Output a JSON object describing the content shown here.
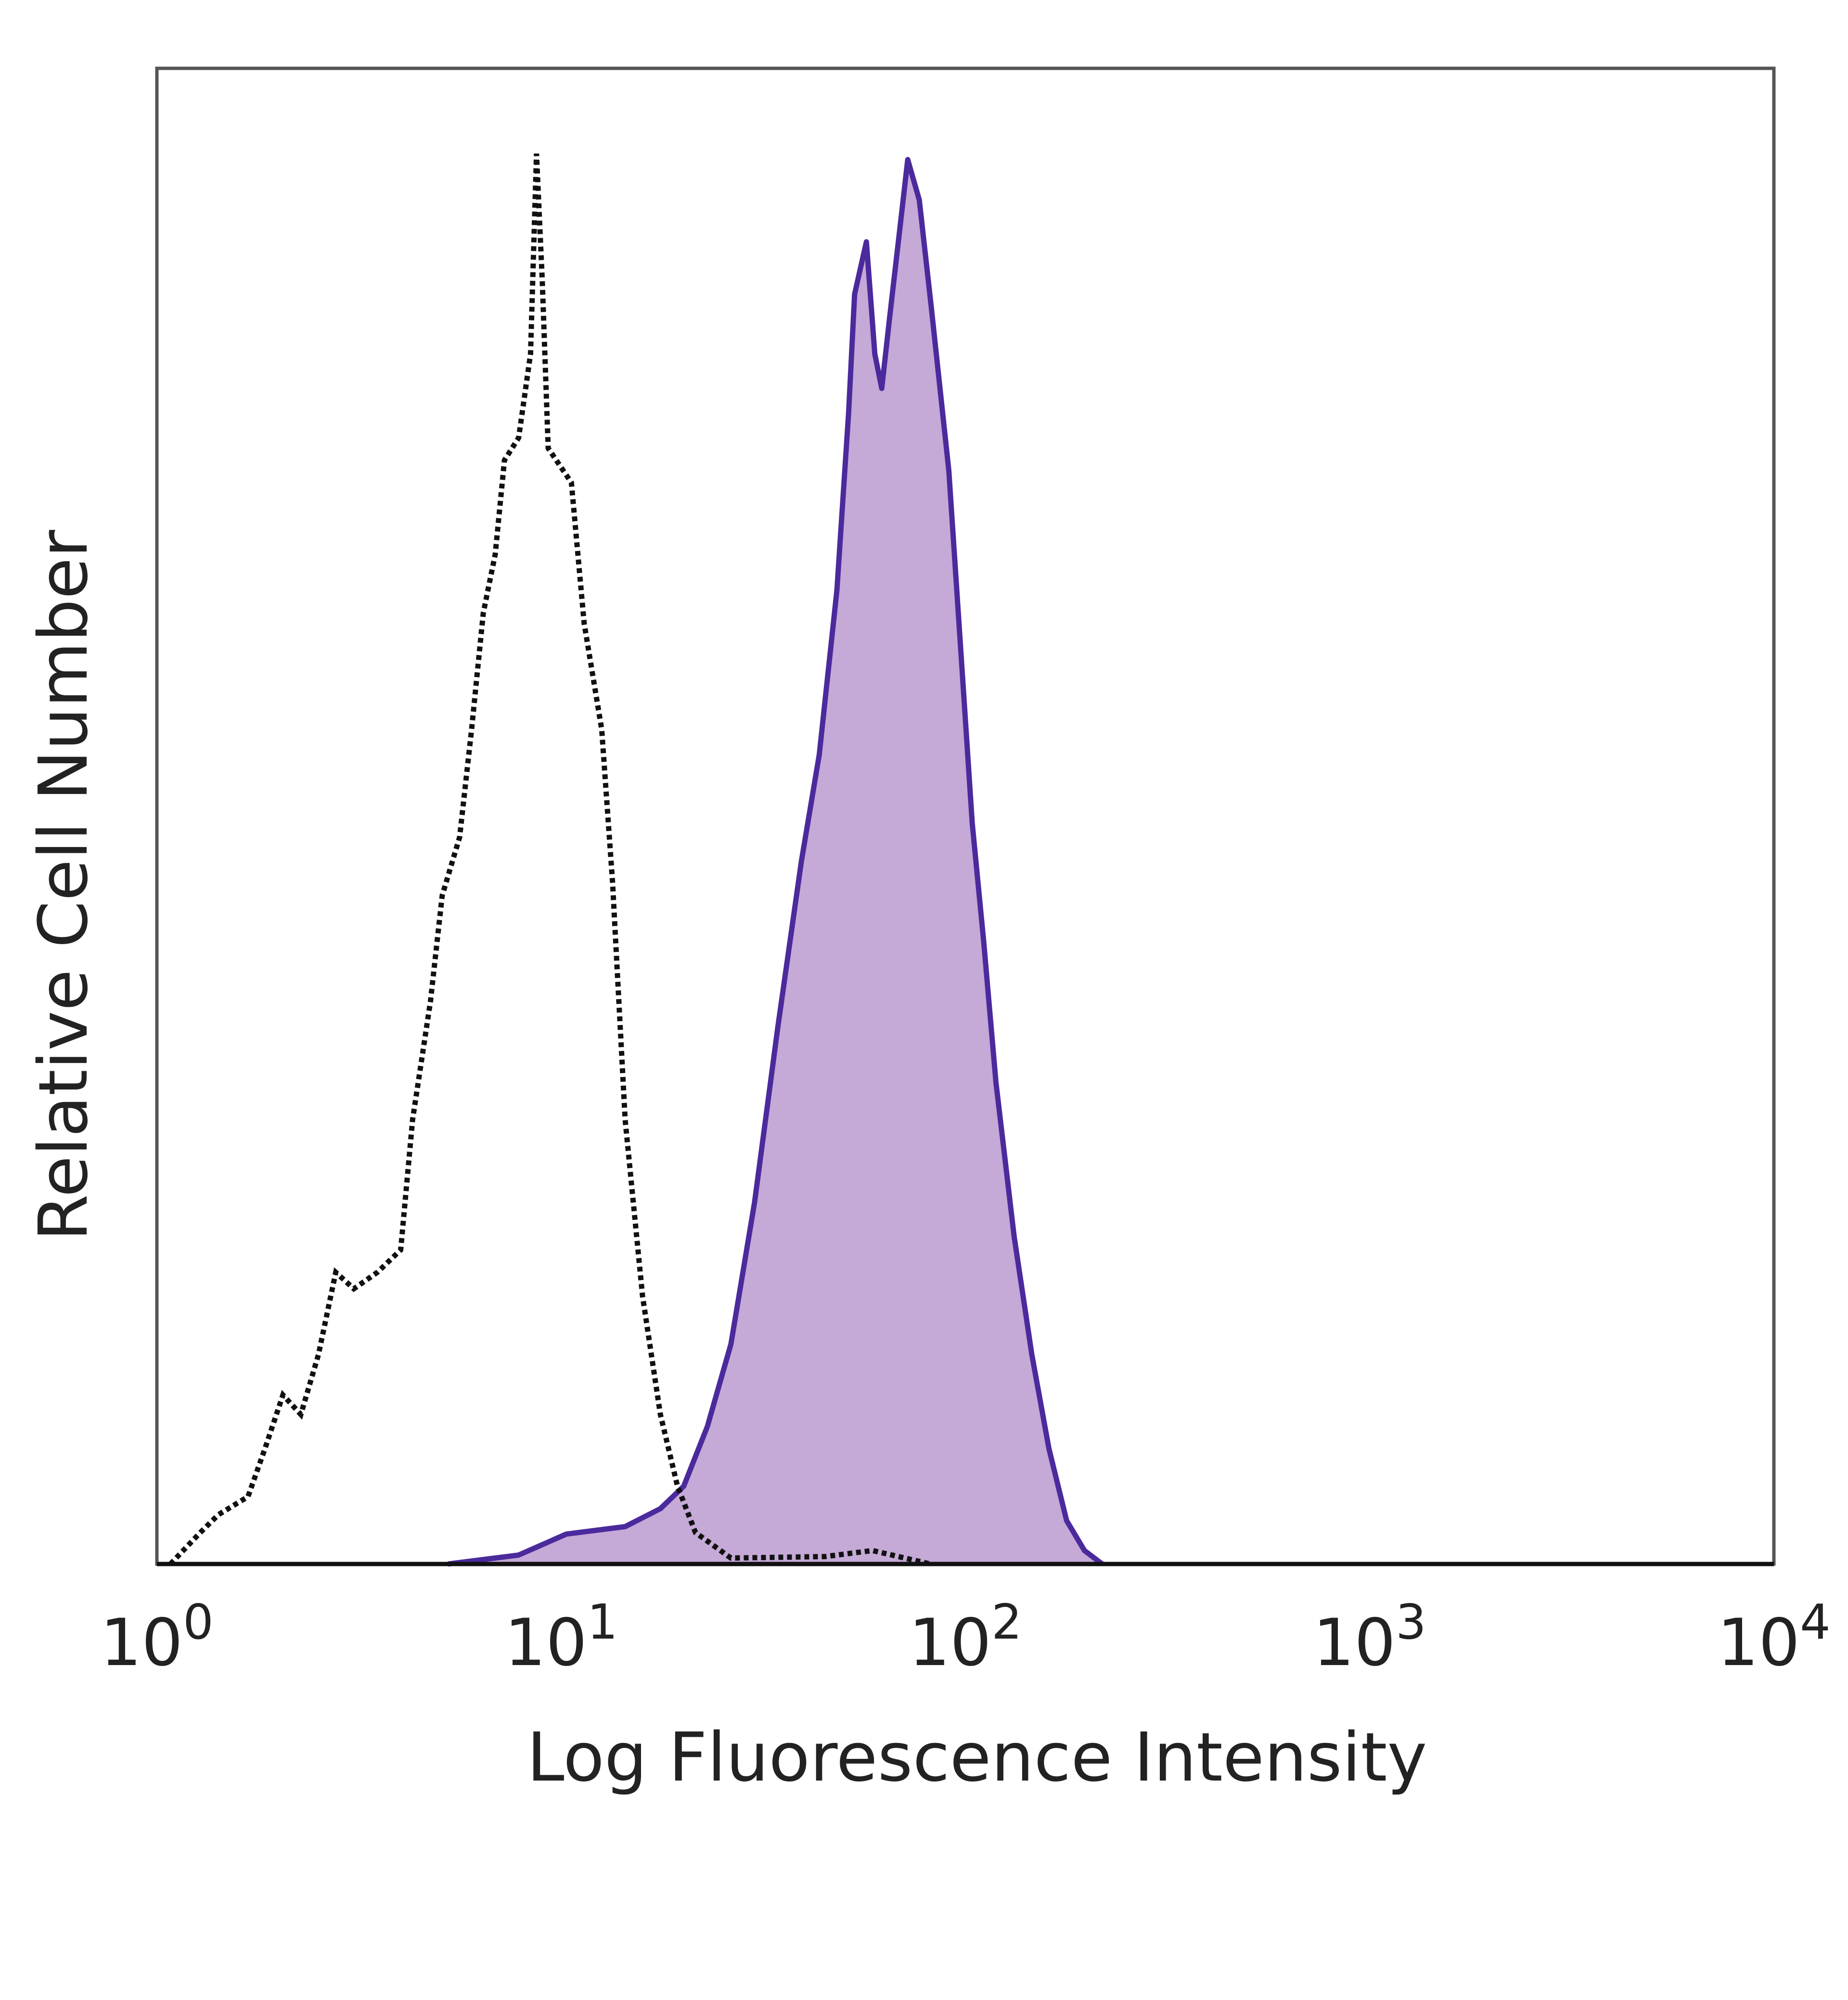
{
  "chart_data": {
    "type": "area",
    "title": "",
    "xlabel": "Log Fluorescence Intensity",
    "ylabel": "Relative Cell Number",
    "x_scale": "log",
    "xlim": [
      1,
      10000
    ],
    "ylim": [
      0,
      100
    ],
    "x_ticks": [
      {
        "base": "10",
        "exp": "0"
      },
      {
        "base": "10",
        "exp": "1"
      },
      {
        "base": "10",
        "exp": "2"
      },
      {
        "base": "10",
        "exp": "3"
      },
      {
        "base": "10",
        "exp": "4"
      }
    ],
    "grid": false,
    "series": [
      {
        "style": "dotted-line",
        "color": "#111111",
        "x": [
          1.08,
          1.28,
          1.42,
          1.68,
          1.85,
          2.05,
          2.27,
          2.51,
          2.77,
          3.07,
          3.51,
          4.01,
          4.29,
          4.75,
          5.08,
          5.61,
          6.0,
          6.42,
          6.87,
          7.24,
          7.85,
          8.4,
          8.69,
          8.98,
          9.29,
          10.6,
          11.4,
          12.6,
          13.4,
          14.4,
          15.9,
          17.6,
          19.4,
          21.5,
          26.3,
          45,
          58.9,
          82
        ],
        "y": [
          0,
          2.1,
          3.3,
          4.5,
          7.7,
          11.3,
          10.0,
          14.0,
          19.5,
          18.4,
          19.5,
          21.0,
          29.7,
          37.6,
          44.7,
          48.6,
          55.7,
          63.6,
          67.5,
          73.8,
          75.3,
          80.9,
          94.3,
          85.8,
          74.6,
          72.3,
          62.9,
          55.8,
          45.6,
          29.7,
          17.9,
          10.0,
          5.2,
          2.1,
          0.4,
          0.5,
          0.9,
          0
        ]
      },
      {
        "style": "filled",
        "color": "#4a2a9c",
        "fill": "#c5a9d6",
        "x": [
          5.25,
          7.85,
          10.3,
          14.4,
          17.6,
          20.1,
          23.0,
          26.3,
          30.1,
          34.4,
          39.3,
          43.5,
          48.1,
          51.4,
          53.2,
          56.9,
          59.7,
          62.1,
          65.0,
          69.6,
          72.0,
          76.9,
          82.3,
          91.0,
          97.3,
          104,
          111,
          119,
          132,
          146,
          161,
          178,
          197,
          218
        ],
        "y": [
          0,
          0.6,
          2.0,
          2.5,
          3.7,
          5.2,
          9.2,
          14.7,
          24.2,
          36.0,
          47.0,
          54.1,
          65.1,
          76.9,
          84.9,
          88.4,
          80.9,
          78.6,
          83.4,
          90.4,
          93.9,
          91.2,
          84.1,
          73.1,
          61.3,
          49.5,
          41.6,
          32.2,
          21.9,
          14.0,
          7.7,
          2.9,
          0.9,
          0
        ]
      }
    ]
  }
}
